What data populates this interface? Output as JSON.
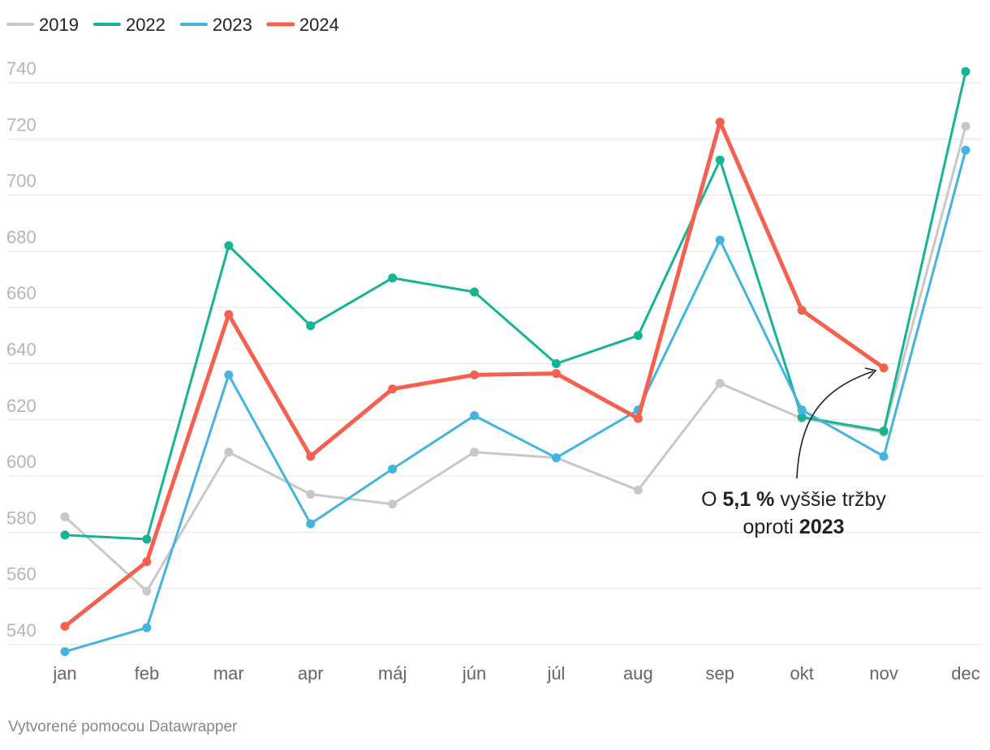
{
  "chart_data": {
    "type": "line",
    "categories": [
      "jan",
      "feb",
      "mar",
      "apr",
      "máj",
      "jún",
      "júl",
      "aug",
      "sep",
      "okt",
      "nov",
      "dec"
    ],
    "series": [
      {
        "name": "2019",
        "color": "#c8c8c8",
        "values": [
          585.5,
          559,
          608.5,
          593.5,
          590,
          608.5,
          606.5,
          595,
          633,
          620.5,
          615.5,
          724.5
        ]
      },
      {
        "name": "2022",
        "color": "#15b594",
        "values": [
          579,
          577.5,
          682,
          653.5,
          670.5,
          665.5,
          640,
          650,
          712.5,
          621,
          616,
          744
        ]
      },
      {
        "name": "2023",
        "color": "#45b3e0",
        "values": [
          537.5,
          546,
          636,
          583,
          602.5,
          621.5,
          606.5,
          623.5,
          684,
          623.5,
          607,
          716
        ]
      },
      {
        "name": "2024",
        "color": "#f6604f",
        "values": [
          546.5,
          569.5,
          657.5,
          607,
          631,
          636,
          636.5,
          620.5,
          726,
          659,
          638.5,
          null
        ]
      }
    ],
    "ylim": [
      532,
      750
    ],
    "yticks": [
      540,
      560,
      580,
      600,
      620,
      640,
      660,
      680,
      700,
      720,
      740
    ],
    "grid": true,
    "legend": "top-left",
    "annotation": {
      "line1": [
        "O ",
        "5,1 %",
        " vyššie tržby"
      ],
      "line2": [
        "oproti ",
        "2023"
      ]
    },
    "footer": "Vytvorené pomocou Datawrapper"
  }
}
